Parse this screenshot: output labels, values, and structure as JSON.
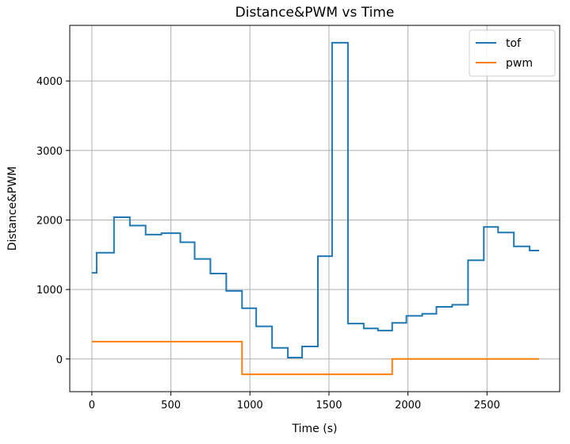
{
  "chart_data": {
    "type": "line",
    "title": "Distance&PWM vs Time",
    "xlabel": "Time (s)",
    "ylabel": "Distance&PWM",
    "xlim": [
      -140,
      2960
    ],
    "ylim": [
      -470,
      4800
    ],
    "xticks": [
      0,
      500,
      1000,
      1500,
      2000,
      2500
    ],
    "yticks": [
      0,
      1000,
      2000,
      3000,
      4000
    ],
    "grid": true,
    "legend_position": "top-right",
    "series": [
      {
        "name": "tof",
        "color": "#1f77b4",
        "step": true,
        "points": [
          [
            0,
            1240
          ],
          [
            30,
            1530
          ],
          [
            140,
            2040
          ],
          [
            240,
            1920
          ],
          [
            340,
            1790
          ],
          [
            440,
            1810
          ],
          [
            560,
            1680
          ],
          [
            650,
            1440
          ],
          [
            750,
            1230
          ],
          [
            850,
            980
          ],
          [
            950,
            730
          ],
          [
            1040,
            470
          ],
          [
            1140,
            160
          ],
          [
            1240,
            20
          ],
          [
            1330,
            180
          ],
          [
            1430,
            1480
          ],
          [
            1520,
            4550
          ],
          [
            1620,
            510
          ],
          [
            1720,
            440
          ],
          [
            1810,
            410
          ],
          [
            1900,
            520
          ],
          [
            1990,
            620
          ],
          [
            2090,
            650
          ],
          [
            2180,
            750
          ],
          [
            2280,
            780
          ],
          [
            2380,
            1420
          ],
          [
            2480,
            1900
          ],
          [
            2570,
            1820
          ],
          [
            2670,
            1620
          ],
          [
            2770,
            1560
          ],
          [
            2830,
            1560
          ]
        ]
      },
      {
        "name": "pwm",
        "color": "#ff7f0e",
        "step": true,
        "points": [
          [
            0,
            250
          ],
          [
            950,
            -220
          ],
          [
            1900,
            0
          ],
          [
            2830,
            0
          ]
        ]
      }
    ]
  }
}
